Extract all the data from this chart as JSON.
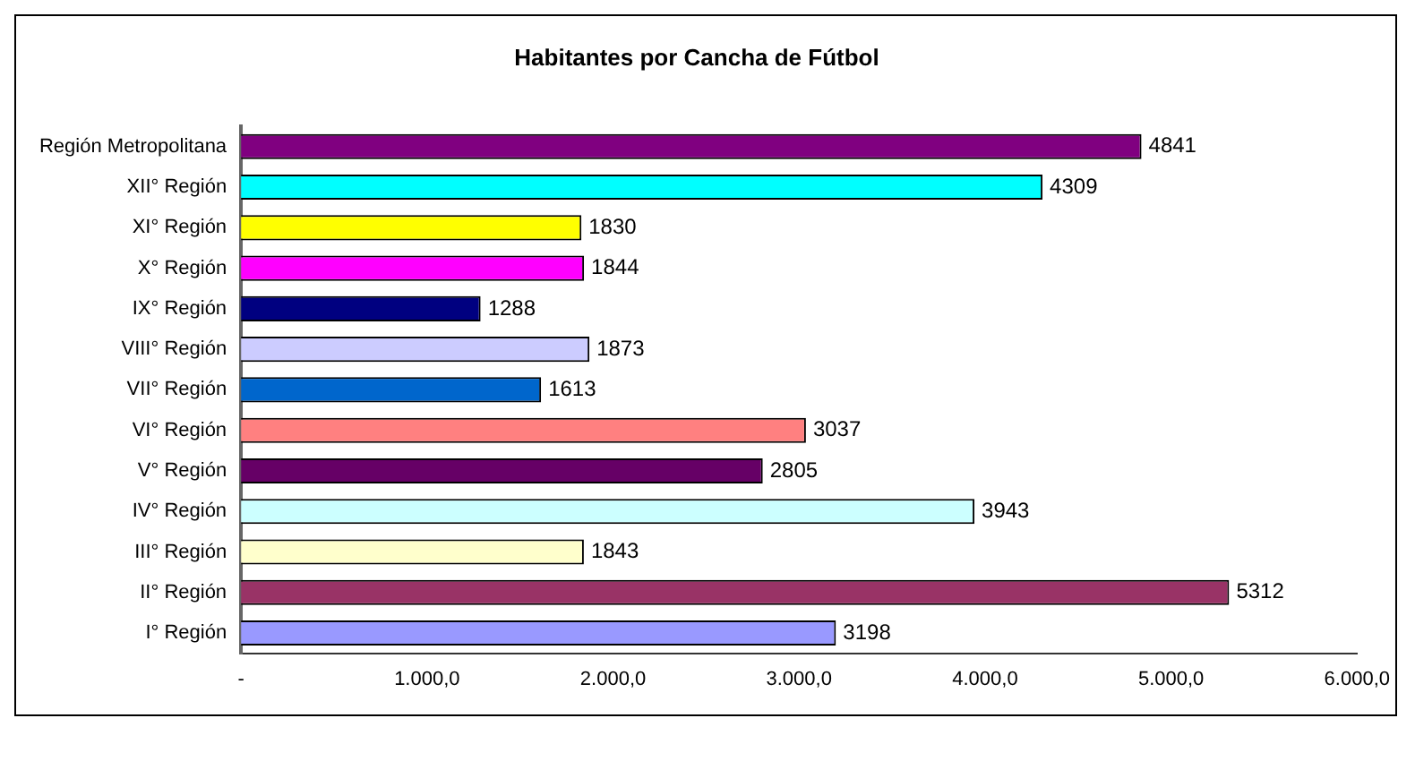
{
  "chart_data": {
    "type": "bar",
    "orientation": "horizontal",
    "title": "Habitantes por Cancha de Fútbol",
    "categories": [
      "Región Metropolitana",
      "XII° Región",
      "XI° Región",
      "X° Región",
      "IX° Región",
      "VIII° Región",
      "VII° Región",
      "VI° Región",
      "V° Región",
      "IV° Región",
      "III° Región",
      "II° Región",
      "I° Región"
    ],
    "values": [
      4841,
      4309,
      1830,
      1844,
      1288,
      1873,
      1613,
      3037,
      2805,
      3943,
      1843,
      5312,
      3198
    ],
    "colors": [
      "#800080",
      "#00ffff",
      "#ffff00",
      "#ff00ff",
      "#000080",
      "#ccccff",
      "#0066cc",
      "#ff8080",
      "#660066",
      "#ccffff",
      "#ffffcc",
      "#993366",
      "#9999ff"
    ],
    "xlim": [
      0,
      6000
    ],
    "xticks": [
      {
        "value": 0,
        "label": "-"
      },
      {
        "value": 1000,
        "label": "1.000,0"
      },
      {
        "value": 2000,
        "label": "2.000,0"
      },
      {
        "value": 3000,
        "label": "3.000,0"
      },
      {
        "value": 4000,
        "label": "4.000,0"
      },
      {
        "value": 5000,
        "label": "5.000,0"
      },
      {
        "value": 6000,
        "label": "6.000,0"
      }
    ],
    "grid": false,
    "legend": false,
    "data_labels": true
  }
}
